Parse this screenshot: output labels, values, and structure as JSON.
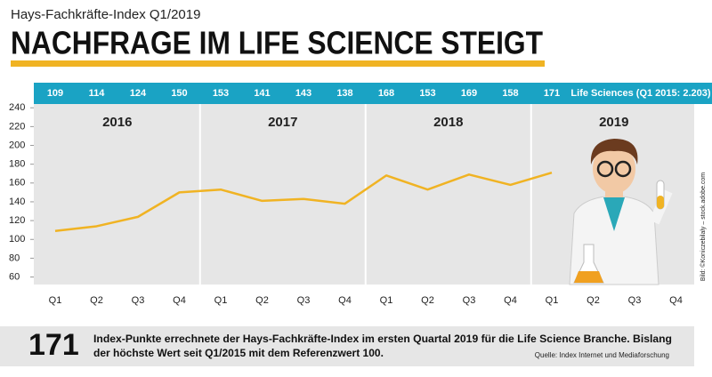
{
  "chart_data": {
    "type": "line",
    "subtitle": "Hays-Fachkräfte-Index Q1/2019",
    "title": "NACHFRAGE IM LIFE SCIENCE STEIGT",
    "categories": [
      "Q1",
      "Q2",
      "Q3",
      "Q4",
      "Q1",
      "Q2",
      "Q3",
      "Q4",
      "Q1",
      "Q2",
      "Q3",
      "Q4",
      "Q1",
      "Q2",
      "Q3",
      "Q4"
    ],
    "years": [
      "2016",
      "2017",
      "2018",
      "2019"
    ],
    "series": [
      {
        "name": "Life Sciences (Q1 2015: 2.203)",
        "color": "#f0b323",
        "values": [
          109,
          114,
          124,
          150,
          153,
          141,
          143,
          138,
          168,
          153,
          169,
          158,
          171,
          null,
          null,
          null
        ]
      }
    ],
    "ylim": [
      52,
      244
    ],
    "yticks": [
      60,
      80,
      100,
      120,
      140,
      160,
      180,
      200,
      220,
      240
    ],
    "grid": false,
    "callout": {
      "number": "171",
      "text_lines": [
        "Index-Punkte errechnete der Hays-Fachkräfte-Index im ersten Quartal 2019 für die Life Science Branche. Bislang",
        "der höchste Wert seit Q1/2015 mit dem Referenzwert 100."
      ],
      "source": "Quelle: Index Internet und Mediaforschung"
    },
    "credit": "Bild: ©Koniczebilaly – stock.adobe.com"
  }
}
